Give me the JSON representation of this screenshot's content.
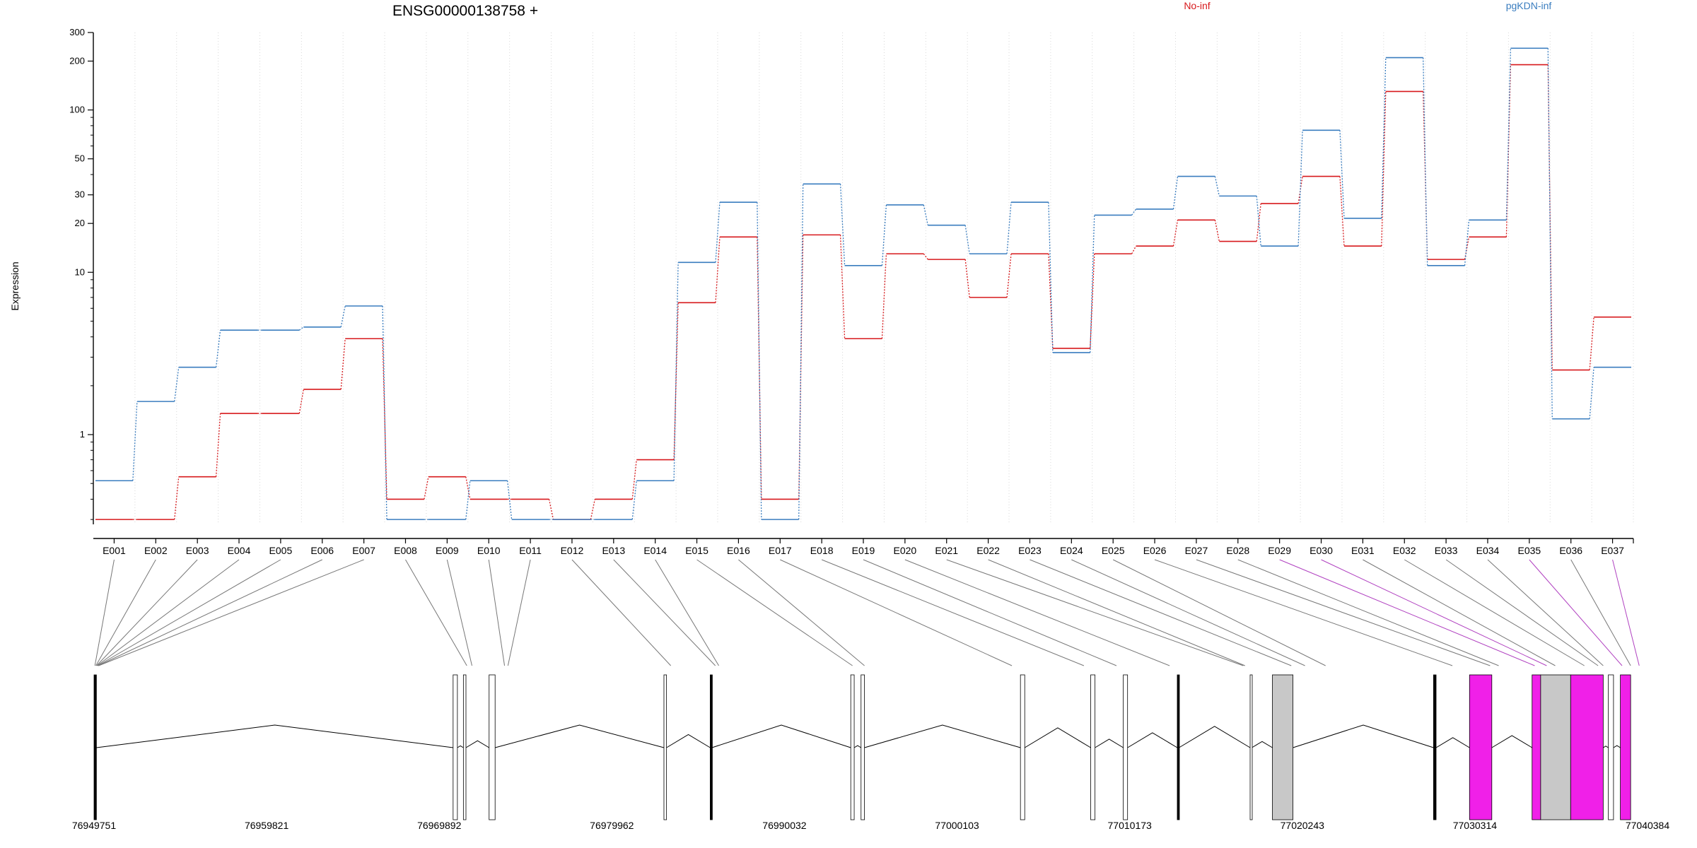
{
  "chart_data": {
    "type": "line",
    "title": "ENSG00000138758 +",
    "ylabel": "Expression",
    "yscale": "log",
    "ylim": [
      0.28,
      300
    ],
    "yticks": [
      {
        "v": 300,
        "label": "300"
      },
      {
        "v": 200,
        "label": "200"
      },
      {
        "v": 100,
        "label": "100"
      },
      {
        "v": 50,
        "label": "50"
      },
      {
        "v": 30,
        "label": "30"
      },
      {
        "v": 20,
        "label": "20"
      },
      {
        "v": 10,
        "label": "10"
      },
      {
        "v": 1,
        "label": "1"
      }
    ],
    "yminor": [
      0.3,
      0.4,
      0.5,
      0.6,
      0.7,
      0.8,
      0.9,
      2,
      3,
      4,
      5,
      6,
      7,
      8,
      9,
      40,
      60,
      70,
      80,
      90
    ],
    "grid": "vertical dotted at exon boundaries",
    "legend_position": "top",
    "categories": [
      "E001",
      "E002",
      "E003",
      "E004",
      "E005",
      "E006",
      "E007",
      "E008",
      "E009",
      "E010",
      "E011",
      "E012",
      "E013",
      "E014",
      "E015",
      "E016",
      "E017",
      "E018",
      "E019",
      "E020",
      "E021",
      "E022",
      "E023",
      "E024",
      "E025",
      "E026",
      "E027",
      "E028",
      "E029",
      "E030",
      "E031",
      "E032",
      "E033",
      "E034",
      "E035",
      "E036",
      "E037"
    ],
    "series": [
      {
        "name": "No-inf",
        "color": "#d7191c",
        "values": [
          0.3,
          0.3,
          0.55,
          1.35,
          1.35,
          1.9,
          3.9,
          0.4,
          0.55,
          0.4,
          0.4,
          0.3,
          0.4,
          0.7,
          6.5,
          16.5,
          0.4,
          17,
          3.9,
          13,
          12,
          7,
          13,
          3.4,
          13,
          14.5,
          21,
          15.5,
          26.5,
          39,
          14.5,
          130,
          12,
          16.5,
          190,
          2.5,
          5.3
        ]
      },
      {
        "name": "pgKDN-inf",
        "color": "#3a7dbf",
        "values": [
          0.52,
          1.6,
          2.6,
          4.4,
          4.4,
          4.6,
          6.2,
          0.3,
          0.3,
          0.52,
          0.3,
          0.3,
          0.3,
          0.52,
          11.5,
          27,
          0.3,
          35,
          11,
          26,
          19.5,
          13,
          27,
          3.2,
          22.5,
          24.5,
          39,
          29.5,
          14.5,
          75,
          21.5,
          210,
          11,
          21,
          240,
          1.25,
          2.6
        ]
      }
    ],
    "exon_types": [
      "exon",
      "exon",
      "exon",
      "exon",
      "exon",
      "exon",
      "exon",
      "exon",
      "exon",
      "exon",
      "exon",
      "exon",
      "exon",
      "exon",
      "exon",
      "exon",
      "exon",
      "exon",
      "exon",
      "exon",
      "exon",
      "exon",
      "exon",
      "exon",
      "exon",
      "exon",
      "exon",
      "exon",
      "exon",
      "exon",
      "exon",
      "exon",
      "exon",
      "exon",
      "exon",
      "exon",
      "exon"
    ],
    "highlight_exons": [
      "E029",
      "E030",
      "E035",
      "E037"
    ],
    "genome": {
      "start": 76949751,
      "end": 77040384,
      "axis_labels": [
        "76949751",
        "76959821",
        "76969892",
        "76979962",
        "76990032",
        "77000103",
        "77010173",
        "77020243",
        "77030314",
        "77040384"
      ],
      "exon_positions": [
        76949800,
        76949860,
        76949900,
        76949930,
        76949960,
        76949990,
        76950020,
        76971500,
        76971800,
        76973700,
        76973900,
        76983400,
        76986000,
        76986200,
        76994000,
        76994700,
        77003300,
        77007500,
        77009400,
        77012500,
        77016800,
        77016900,
        77019600,
        77020400,
        77021600,
        77029000,
        77031200,
        77031700,
        77033800,
        77034500,
        77035000,
        77036700,
        77037500,
        77037800,
        77038900,
        77039400,
        77039900
      ],
      "exon_blocks": [
        {
          "start": 76949751,
          "end": 76949890,
          "fill": "#000000"
        },
        {
          "start": 76970700,
          "end": 76970950,
          "fill": "#ffffff"
        },
        {
          "start": 76971300,
          "end": 76971450,
          "fill": "#ffffff"
        },
        {
          "start": 76972800,
          "end": 76973150,
          "fill": "#ffffff"
        },
        {
          "start": 76983000,
          "end": 76983150,
          "fill": "#ffffff"
        },
        {
          "start": 76985700,
          "end": 76985800,
          "fill": "#000000"
        },
        {
          "start": 76993900,
          "end": 76994100,
          "fill": "#ffffff"
        },
        {
          "start": 76994500,
          "end": 76994700,
          "fill": "#ffffff"
        },
        {
          "start": 77003800,
          "end": 77004050,
          "fill": "#ffffff"
        },
        {
          "start": 77007900,
          "end": 77008150,
          "fill": "#ffffff"
        },
        {
          "start": 77009800,
          "end": 77010050,
          "fill": "#ffffff"
        },
        {
          "start": 77012950,
          "end": 77013050,
          "fill": "#000000"
        },
        {
          "start": 77017200,
          "end": 77017300,
          "fill": "#ffffff"
        },
        {
          "start": 77018500,
          "end": 77019700,
          "fill": "#c8c8c8"
        },
        {
          "start": 77027900,
          "end": 77028050,
          "fill": "#000000"
        },
        {
          "start": 77030000,
          "end": 77031300,
          "fill": "#f020e8"
        },
        {
          "start": 77033650,
          "end": 77034150,
          "fill": "#f020e8"
        },
        {
          "start": 77034150,
          "end": 77035900,
          "fill": "#c8c8c8"
        },
        {
          "start": 77035900,
          "end": 77037800,
          "fill": "#f020e8"
        },
        {
          "start": 77038100,
          "end": 77038400,
          "fill": "#ffffff"
        },
        {
          "start": 77038800,
          "end": 77039400,
          "fill": "#f020e8"
        }
      ]
    }
  }
}
